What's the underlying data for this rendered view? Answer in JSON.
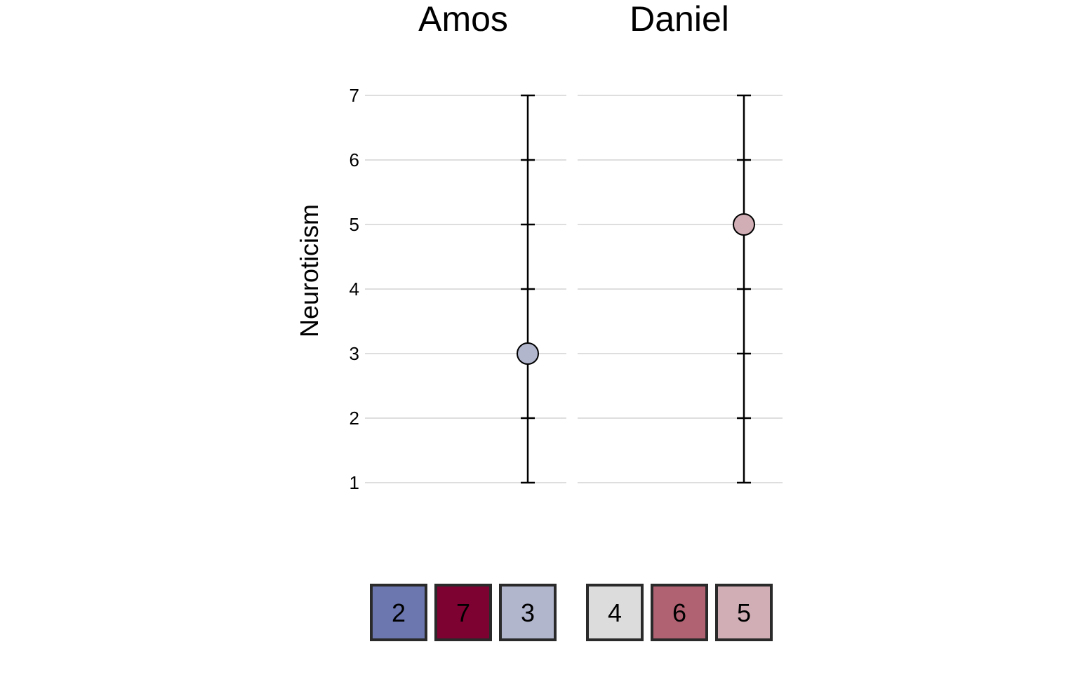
{
  "chart_data": {
    "type": "scatter",
    "ylabel": "Neuroticism",
    "ylim": [
      1,
      7
    ],
    "yticks": [
      1,
      2,
      3,
      4,
      5,
      6,
      7
    ],
    "grid": true,
    "panels": [
      {
        "name": "Amos",
        "value": 3,
        "point_color": "#b2b6cd",
        "swatches": [
          {
            "label": "2",
            "color": "#6b77ae"
          },
          {
            "label": "7",
            "color": "#7d0131"
          },
          {
            "label": "3",
            "color": "#b2b6cd"
          }
        ]
      },
      {
        "name": "Daniel",
        "value": 5,
        "point_color": "#d1aeb5",
        "swatches": [
          {
            "label": "4",
            "color": "#dcdcdc"
          },
          {
            "label": "6",
            "color": "#b06272"
          },
          {
            "label": "5",
            "color": "#d1aeb5"
          }
        ]
      }
    ]
  }
}
